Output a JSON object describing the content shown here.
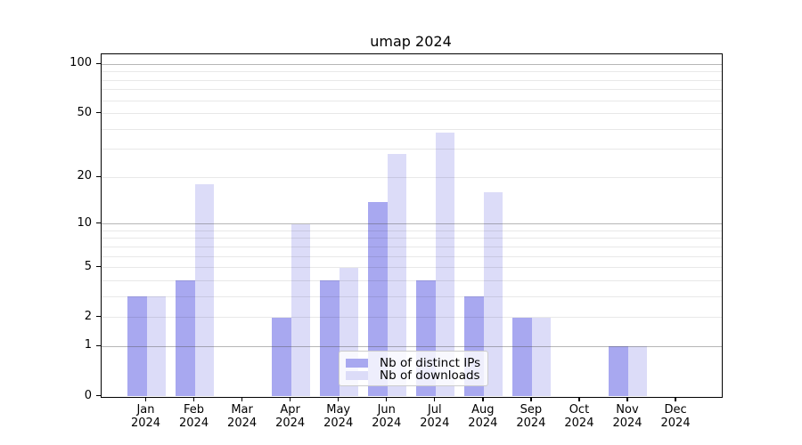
{
  "title": "umap 2024",
  "colors": {
    "background": "#ffffff",
    "axis": "#000000",
    "grid_major": "#b4b4b4",
    "grid_minor": "#e8e8e8",
    "ips_bar": "#a8a8f0",
    "downloads_bar": "#dcdcf8"
  },
  "legend": {
    "items": [
      {
        "label": "Nb of distinct IPs",
        "color_key": "ips_bar"
      },
      {
        "label": "Nb of downloads",
        "color_key": "downloads_bar"
      }
    ]
  },
  "chart_data": {
    "type": "bar",
    "title": "umap 2024",
    "xlabel": "",
    "ylabel": "",
    "scale": "log1p",
    "categories": [
      {
        "month": "Jan",
        "year": "2024"
      },
      {
        "month": "Feb",
        "year": "2024"
      },
      {
        "month": "Mar",
        "year": "2024"
      },
      {
        "month": "Apr",
        "year": "2024"
      },
      {
        "month": "May",
        "year": "2024"
      },
      {
        "month": "Jun",
        "year": "2024"
      },
      {
        "month": "Jul",
        "year": "2024"
      },
      {
        "month": "Aug",
        "year": "2024"
      },
      {
        "month": "Sep",
        "year": "2024"
      },
      {
        "month": "Oct",
        "year": "2024"
      },
      {
        "month": "Nov",
        "year": "2024"
      },
      {
        "month": "Dec",
        "year": "2024"
      }
    ],
    "series": [
      {
        "name": "Nb of distinct IPs",
        "color_key": "ips_bar",
        "values": [
          3,
          4,
          0,
          2,
          4,
          14,
          4,
          3,
          2,
          0,
          1,
          0
        ]
      },
      {
        "name": "Nb of downloads",
        "color_key": "downloads_bar",
        "values": [
          3,
          18,
          0,
          10,
          5,
          28,
          38,
          16,
          2,
          0,
          1,
          0
        ]
      }
    ],
    "yticks": [
      0,
      1,
      2,
      5,
      10,
      20,
      50,
      100
    ],
    "minor_gridlines": [
      2,
      3,
      4,
      5,
      6,
      7,
      8,
      9,
      20,
      30,
      40,
      50,
      60,
      70,
      80,
      90
    ],
    "major_gridlines": [
      1,
      10,
      100
    ],
    "ylim": [
      0,
      116
    ],
    "grid": "both",
    "legend_position": "lower-center"
  }
}
